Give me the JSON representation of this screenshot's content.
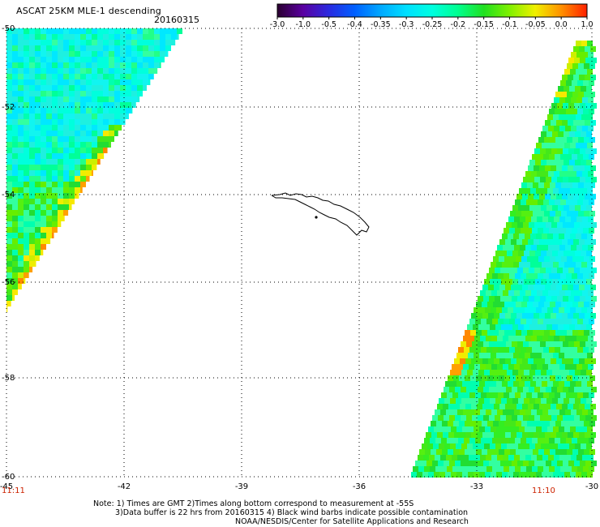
{
  "title": "ASCAT 25KM MLE-1 descending",
  "date": "20160315",
  "colorbar": {
    "tick_labels": [
      "-3.0",
      "-1.0",
      "-0.5",
      "-0.4",
      "-0.35",
      "-0.3",
      "-0.25",
      "-0.2",
      "-0.15",
      "-0.1",
      "-0.05",
      "0.0",
      "1.0"
    ],
    "colors": [
      "#2a0030",
      "#5a00a0",
      "#2a2ae0",
      "#0060ff",
      "#00a8ff",
      "#00e0ff",
      "#00ffe0",
      "#00ff90",
      "#20e020",
      "#80f000",
      "#f0f000",
      "#ff9000",
      "#ff2000"
    ]
  },
  "axes": {
    "x_labels": [
      "-45",
      "-42",
      "-39",
      "-36",
      "-33",
      "-30"
    ],
    "y_labels": [
      "-50",
      "-52",
      "-54",
      "-56",
      "-58",
      "-60"
    ]
  },
  "times": {
    "left": "11:11",
    "right": "11:10"
  },
  "notes": {
    "line1": "Note: 1) Times are GMT 2)Times along bottom correspond to measurement at -55S",
    "line2": "3)Data buffer is 22 hrs from 20160315 4) Black wind barbs indicate possible contamination",
    "line3": "NOAA/NESDIS/Center for Satellite Applications and Research"
  }
}
